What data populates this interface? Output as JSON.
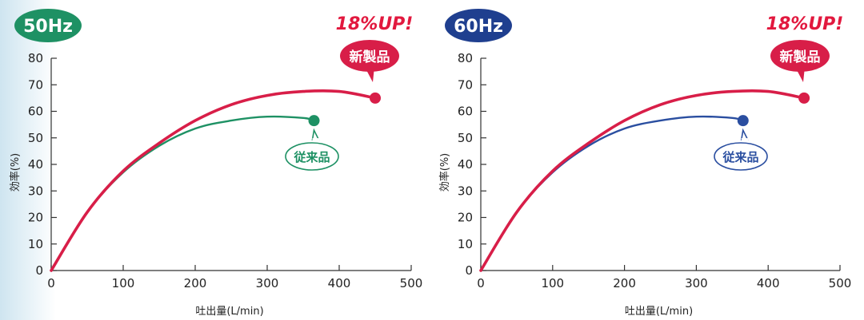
{
  "chart_data": [
    {
      "type": "line",
      "frequency": "50Hz",
      "frequency_color": "#1e9164",
      "headline": "18%UP!",
      "xlabel": "吐出量(L/min)",
      "ylabel": "効率(%)",
      "xlim": [
        0,
        500
      ],
      "ylim": [
        0,
        80
      ],
      "xticks": [
        "0",
        "100",
        "200",
        "300",
        "400",
        "500"
      ],
      "yticks": [
        "0",
        "10",
        "20",
        "30",
        "40",
        "50",
        "60",
        "70",
        "80"
      ],
      "grid": false,
      "series": [
        {
          "name": "新製品",
          "color": "#d81e48",
          "x": [
            0,
            50,
            100,
            150,
            200,
            250,
            300,
            350,
            400,
            450
          ],
          "y": [
            0,
            22,
            37.5,
            48,
            56.5,
            62.5,
            66,
            67.5,
            67.5,
            65
          ]
        },
        {
          "name": "従来品",
          "color": "#1e9164",
          "x": [
            0,
            50,
            100,
            150,
            200,
            250,
            300,
            350,
            365
          ],
          "y": [
            0,
            22,
            37,
            47,
            53.5,
            56.5,
            58,
            57.5,
            56.5
          ]
        }
      ]
    },
    {
      "type": "line",
      "frequency": "60Hz",
      "frequency_color": "#1f3f8f",
      "headline": "18%UP!",
      "xlabel": "吐出量(L/min)",
      "ylabel": "効率(%)",
      "xlim": [
        0,
        500
      ],
      "ylim": [
        0,
        80
      ],
      "xticks": [
        "0",
        "100",
        "200",
        "300",
        "400",
        "500"
      ],
      "yticks": [
        "0",
        "10",
        "20",
        "30",
        "40",
        "50",
        "60",
        "70",
        "80"
      ],
      "grid": false,
      "series": [
        {
          "name": "新製品",
          "color": "#d81e48",
          "x": [
            0,
            50,
            100,
            150,
            200,
            250,
            300,
            350,
            400,
            450
          ],
          "y": [
            0,
            22,
            37.5,
            48,
            56.5,
            62.5,
            66,
            67.5,
            67.5,
            65
          ]
        },
        {
          "name": "従来品",
          "color": "#2a4ea0",
          "x": [
            0,
            50,
            100,
            150,
            200,
            250,
            300,
            350,
            365
          ],
          "y": [
            0,
            22,
            37,
            47,
            53.5,
            56.5,
            58,
            57.5,
            56.5
          ]
        }
      ]
    }
  ]
}
